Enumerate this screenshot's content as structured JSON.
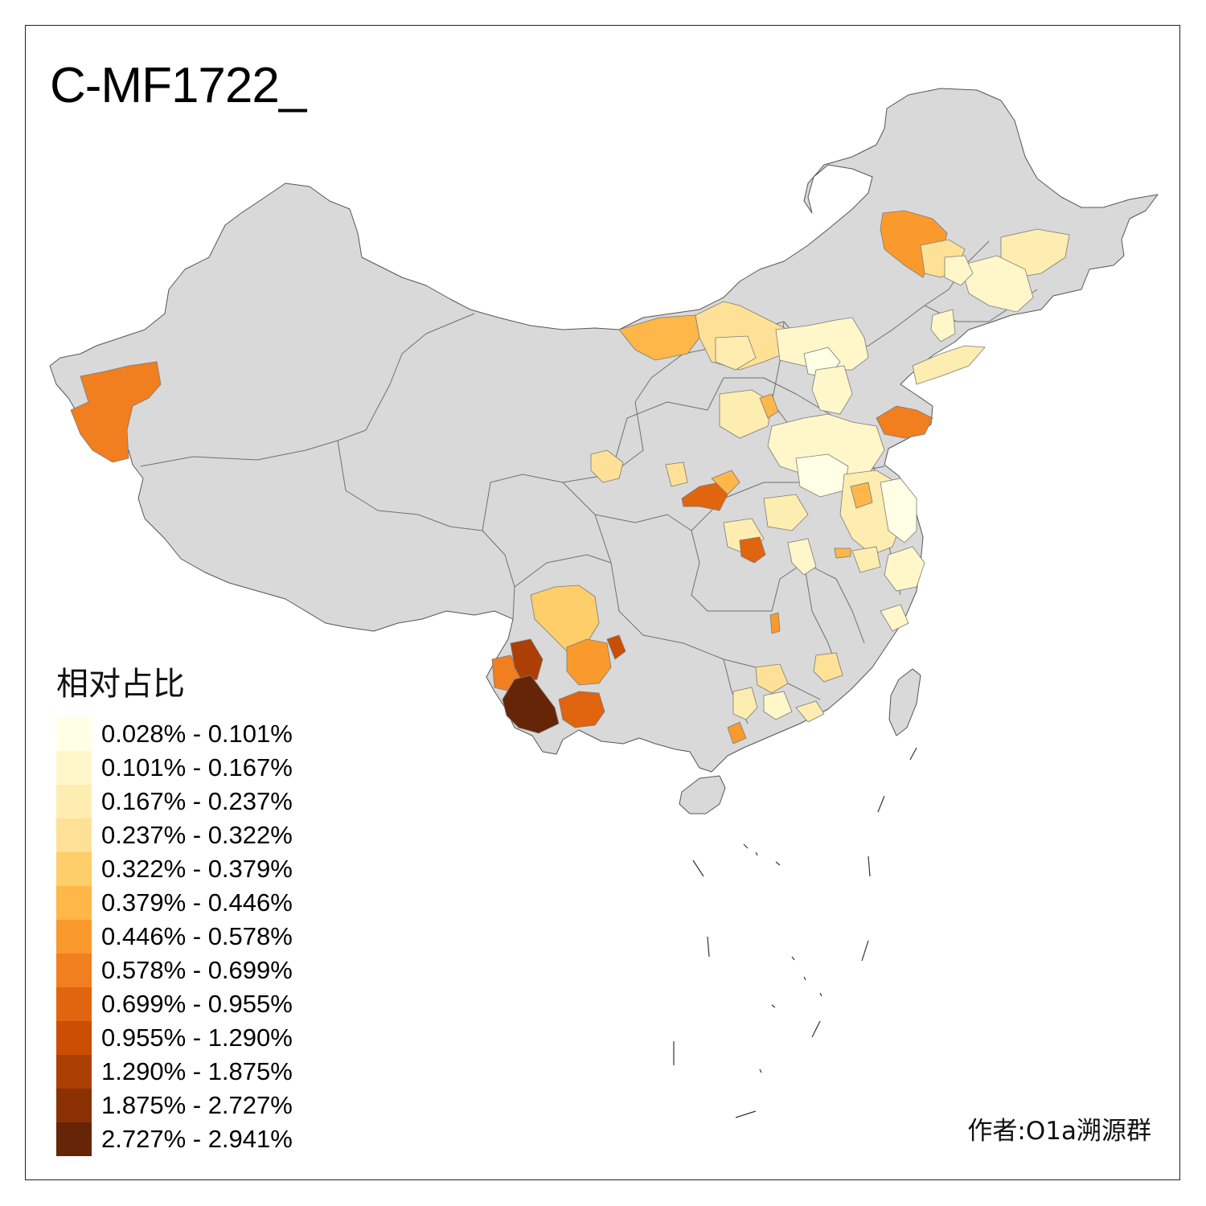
{
  "title": "C-MF1722_",
  "legend": {
    "title": "相对占比",
    "items": [
      {
        "label": "0.028% - 0.101%",
        "color": "#FFFFE5"
      },
      {
        "label": "0.101% - 0.167%",
        "color": "#FFF7C9"
      },
      {
        "label": "0.167% - 0.237%",
        "color": "#FEEDB0"
      },
      {
        "label": "0.237% - 0.322%",
        "color": "#FEE196"
      },
      {
        "label": "0.322% - 0.379%",
        "color": "#FECE6B"
      },
      {
        "label": "0.379% - 0.446%",
        "color": "#FEB748"
      },
      {
        "label": "0.446% - 0.578%",
        "color": "#FB9A2C"
      },
      {
        "label": "0.578% - 0.699%",
        "color": "#F17E1F"
      },
      {
        "label": "0.699% - 0.955%",
        "color": "#E1640F"
      },
      {
        "label": "0.955% - 1.290%",
        "color": "#CB4E04"
      },
      {
        "label": "1.290% - 1.875%",
        "color": "#AC3F03"
      },
      {
        "label": "1.875% - 2.727%",
        "color": "#8B3104"
      },
      {
        "label": "2.727% - 2.941%",
        "color": "#662506"
      }
    ]
  },
  "credit": "作者:O1a溯源群",
  "colors": {
    "no_data": "#D9D9D9",
    "border": "#555555"
  }
}
